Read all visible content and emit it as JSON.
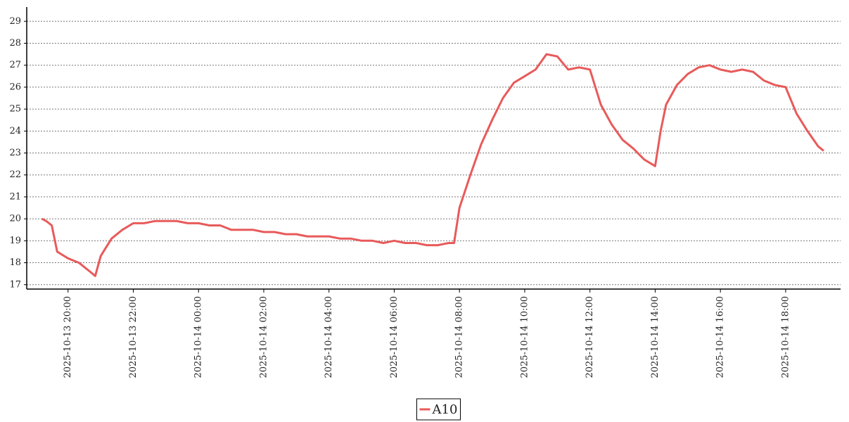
{
  "chart_data": {
    "type": "line",
    "x": [
      "2025-10-13 19:12",
      "2025-10-13 19:20",
      "2025-10-13 19:30",
      "2025-10-13 19:40",
      "2025-10-13 20:00",
      "2025-10-13 20:20",
      "2025-10-13 20:40",
      "2025-10-13 20:50",
      "2025-10-13 21:00",
      "2025-10-13 21:10",
      "2025-10-13 21:20",
      "2025-10-13 21:40",
      "2025-10-13 22:00",
      "2025-10-13 22:20",
      "2025-10-13 22:40",
      "2025-10-13 23:00",
      "2025-10-13 23:20",
      "2025-10-13 23:40",
      "2025-10-14 00:00",
      "2025-10-14 00:20",
      "2025-10-14 00:40",
      "2025-10-14 01:00",
      "2025-10-14 01:20",
      "2025-10-14 01:40",
      "2025-10-14 02:00",
      "2025-10-14 02:20",
      "2025-10-14 02:40",
      "2025-10-14 03:00",
      "2025-10-14 03:20",
      "2025-10-14 03:40",
      "2025-10-14 04:00",
      "2025-10-14 04:20",
      "2025-10-14 04:40",
      "2025-10-14 05:00",
      "2025-10-14 05:20",
      "2025-10-14 05:40",
      "2025-10-14 06:00",
      "2025-10-14 06:20",
      "2025-10-14 06:40",
      "2025-10-14 07:00",
      "2025-10-14 07:20",
      "2025-10-14 07:40",
      "2025-10-14 07:50",
      "2025-10-14 08:00",
      "2025-10-14 08:20",
      "2025-10-14 08:40",
      "2025-10-14 09:00",
      "2025-10-14 09:20",
      "2025-10-14 09:40",
      "2025-10-14 10:00",
      "2025-10-14 10:20",
      "2025-10-14 10:40",
      "2025-10-14 11:00",
      "2025-10-14 11:20",
      "2025-10-14 11:40",
      "2025-10-14 12:00",
      "2025-10-14 12:20",
      "2025-10-14 12:40",
      "2025-10-14 13:00",
      "2025-10-14 13:20",
      "2025-10-14 13:40",
      "2025-10-14 14:00",
      "2025-10-14 14:10",
      "2025-10-14 14:20",
      "2025-10-14 14:40",
      "2025-10-14 15:00",
      "2025-10-14 15:20",
      "2025-10-14 15:40",
      "2025-10-14 16:00",
      "2025-10-14 16:20",
      "2025-10-14 16:40",
      "2025-10-14 17:00",
      "2025-10-14 17:20",
      "2025-10-14 17:40",
      "2025-10-14 18:00",
      "2025-10-14 18:20",
      "2025-10-14 18:40",
      "2025-10-14 19:00",
      "2025-10-14 19:10"
    ],
    "series": [
      {
        "name": "A10",
        "color": "#e85a5a",
        "values": [
          20.0,
          19.9,
          19.7,
          18.5,
          18.2,
          18.0,
          17.6,
          17.4,
          18.3,
          18.7,
          19.1,
          19.5,
          19.8,
          19.8,
          19.9,
          19.9,
          19.9,
          19.8,
          19.8,
          19.7,
          19.7,
          19.5,
          19.5,
          19.5,
          19.4,
          19.4,
          19.3,
          19.3,
          19.2,
          19.2,
          19.2,
          19.1,
          19.1,
          19.0,
          19.0,
          18.9,
          19.0,
          18.9,
          18.9,
          18.8,
          18.8,
          18.9,
          18.9,
          20.5,
          22.0,
          23.4,
          24.5,
          25.5,
          26.2,
          26.5,
          26.8,
          27.5,
          27.4,
          26.8,
          26.9,
          26.8,
          25.2,
          24.3,
          23.6,
          23.2,
          22.7,
          22.4,
          24.0,
          25.2,
          26.1,
          26.6,
          26.9,
          27.0,
          26.8,
          26.7,
          26.8,
          26.7,
          26.3,
          26.1,
          26.0,
          24.8,
          24.0,
          23.3,
          23.1
        ]
      }
    ],
    "xlim": [
      "2025-10-13 18:44",
      "2025-10-14 19:41"
    ],
    "xticks": [
      "2025-10-13 20:00",
      "2025-10-13 22:00",
      "2025-10-14 00:00",
      "2025-10-14 02:00",
      "2025-10-14 04:00",
      "2025-10-14 06:00",
      "2025-10-14 08:00",
      "2025-10-14 10:00",
      "2025-10-14 12:00",
      "2025-10-14 14:00",
      "2025-10-14 16:00",
      "2025-10-14 18:00"
    ],
    "ylim": [
      16.8,
      29.65
    ],
    "yticks": [
      17,
      18,
      19,
      20,
      21,
      22,
      23,
      24,
      25,
      26,
      27,
      28,
      29
    ],
    "grid": true,
    "legend": "bottom"
  }
}
